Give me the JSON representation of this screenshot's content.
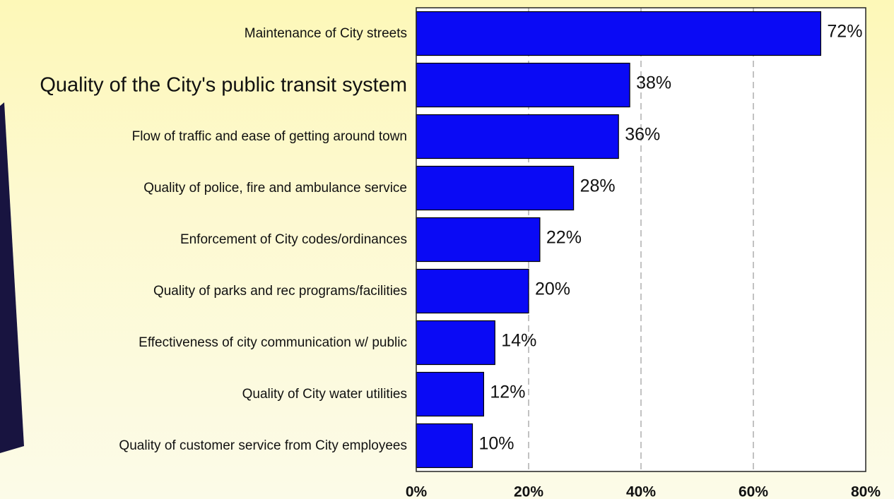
{
  "chart_data": {
    "type": "bar",
    "orientation": "horizontal",
    "categories": [
      "Maintenance of City streets",
      "Quality of the City's public transit system",
      "Flow of traffic and ease of getting around town",
      "Quality of police, fire and ambulance service",
      "Enforcement of City codes/ordinances",
      "Quality of parks and rec programs/facilities",
      "Effectiveness of city communication w/ public",
      "Quality of City water utilities",
      "Quality of customer service from City employees"
    ],
    "values": [
      72,
      38,
      36,
      28,
      22,
      20,
      14,
      12,
      10
    ],
    "value_labels": [
      "72%",
      "38%",
      "36%",
      "28%",
      "22%",
      "20%",
      "14%",
      "12%",
      "10%"
    ],
    "highlighted_category_index": 1,
    "xlim": [
      0,
      80
    ],
    "x_ticks": [
      0,
      20,
      40,
      60,
      80
    ],
    "x_tick_labels": [
      "0%",
      "20%",
      "40%",
      "60%",
      "80%"
    ],
    "grid": "vertical-dashed",
    "title": "",
    "xlabel": "",
    "ylabel": ""
  },
  "colors": {
    "bar": "#0a0af5",
    "bar_outline": "#000000",
    "plot_background": "#ffffff",
    "gridline": "#9a9a9a",
    "decor_wedge": "#181440",
    "text": "#111111"
  }
}
